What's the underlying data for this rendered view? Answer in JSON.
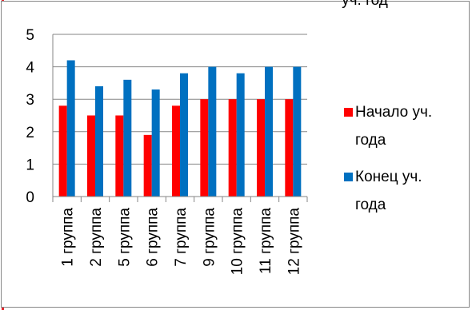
{
  "chart_data": {
    "type": "bar",
    "title": "уч. год",
    "categories": [
      "1 группа",
      "2 группа",
      "5 группа",
      "6 группа",
      "7 группа",
      "9 группа",
      "10 группа",
      "11 группа",
      "12 группа"
    ],
    "series": [
      {
        "name": "Начало уч. года",
        "color": "#ff0000",
        "values": [
          2.8,
          2.5,
          2.5,
          1.9,
          2.8,
          3.0,
          3.0,
          3.0,
          3.0
        ]
      },
      {
        "name": "Конец уч. года",
        "color": "#0070c0",
        "values": [
          4.2,
          3.4,
          3.6,
          3.3,
          3.8,
          4.0,
          3.8,
          4.0,
          4.0
        ]
      }
    ],
    "yticks": [
      "0",
      "1",
      "2",
      "3",
      "4",
      "5"
    ],
    "ylim": [
      0,
      5
    ],
    "grid": true,
    "legend": "right",
    "legend_lines": [
      [
        "Начало уч.",
        "года"
      ],
      [
        "Конец уч.",
        "года"
      ]
    ]
  }
}
